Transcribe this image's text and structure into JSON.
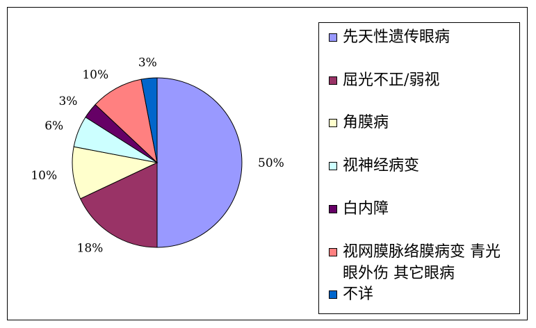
{
  "chart_data": {
    "type": "pie",
    "categories": [
      "先天性遗传眼病",
      "屈光不正/弱视",
      "角膜病",
      "视神经病变",
      "白内障",
      "视网膜脉络膜病变 青光眼外伤 其它眼病",
      "不详"
    ],
    "values": [
      50,
      18,
      10,
      6,
      3,
      10,
      3
    ],
    "data_labels": [
      "50%",
      "18%",
      "10%",
      "6%",
      "3%",
      "10%",
      "3%"
    ],
    "colors": [
      "#9999FF",
      "#993366",
      "#FFFFCC",
      "#CCFFFF",
      "#660066",
      "#FF8080",
      "#0066CC"
    ],
    "legend_position": "right",
    "start_angle_deg": 0,
    "direction": "clockwise"
  }
}
